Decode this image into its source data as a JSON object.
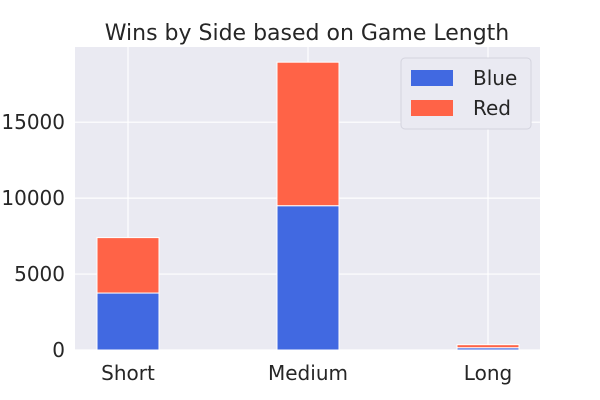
{
  "chart_data": {
    "type": "bar",
    "stacked": true,
    "title": "Wins by Side based on Game Length",
    "xlabel": "",
    "ylabel": "",
    "categories": [
      "Short",
      "Medium",
      "Long"
    ],
    "series": [
      {
        "name": "Blue",
        "color": "#4169E1",
        "values": [
          3750,
          9500,
          150
        ]
      },
      {
        "name": "Red",
        "color": "#FF6347",
        "values": [
          3650,
          9450,
          200
        ]
      }
    ],
    "ylim": [
      0,
      19950
    ],
    "yticks": [
      0,
      5000,
      10000,
      15000
    ],
    "ytick_labels": [
      "0",
      "5000",
      "10000",
      "15000"
    ],
    "grid": true,
    "legend": "top-right",
    "background": "#EAEAF2",
    "grid_color": "#FFFFFF"
  }
}
